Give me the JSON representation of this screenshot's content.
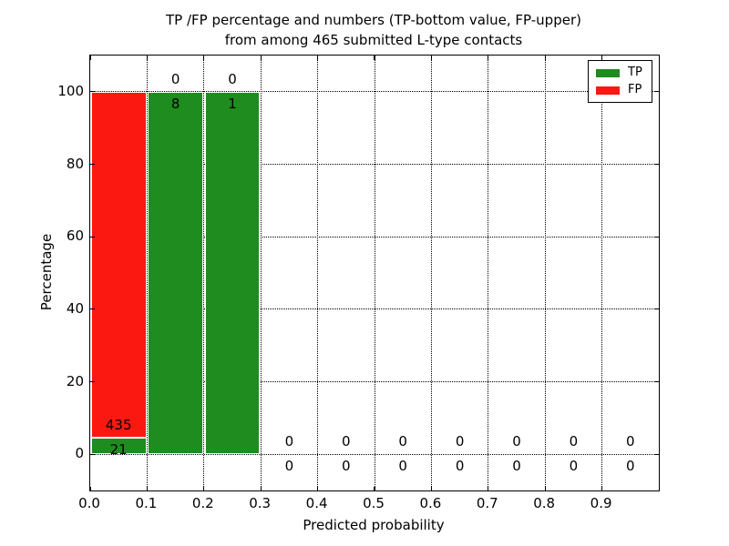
{
  "chart_data": {
    "type": "bar",
    "stacked": true,
    "title_line1": "TP /FP percentage and numbers (TP-bottom value, FP-upper)",
    "title_line2": "from among 465 submitted L-type contacts",
    "xlabel": "Predicted probability",
    "ylabel": "Percentage",
    "total_contacts": 465,
    "xlim": [
      0.0,
      1.0
    ],
    "ylim": [
      -10,
      110
    ],
    "x_tick_labels": [
      "0.0",
      "0.1",
      "0.2",
      "0.3",
      "0.4",
      "0.5",
      "0.6",
      "0.7",
      "0.8",
      "0.9"
    ],
    "y_ticks": [
      0,
      20,
      40,
      60,
      80,
      100
    ],
    "grid_style": "dotted",
    "legend": {
      "position": "upper right",
      "entries": [
        {
          "label": "TP",
          "color": "#1e8c1e"
        },
        {
          "label": "FP",
          "color": "#fb1811"
        }
      ]
    },
    "series": [
      {
        "name": "TP",
        "counts": [
          21,
          8,
          1,
          0,
          0,
          0,
          0,
          0,
          0,
          0
        ]
      },
      {
        "name": "FP",
        "counts": [
          435,
          0,
          0,
          0,
          0,
          0,
          0,
          0,
          0,
          0
        ]
      }
    ],
    "bins": [
      {
        "range": "0.0-0.1",
        "tp": 21,
        "fp": 435,
        "tp_pct": 4.6,
        "fp_pct": 95.4
      },
      {
        "range": "0.1-0.2",
        "tp": 8,
        "fp": 0,
        "tp_pct": 100,
        "fp_pct": 0
      },
      {
        "range": "0.2-0.3",
        "tp": 1,
        "fp": 0,
        "tp_pct": 100,
        "fp_pct": 0
      },
      {
        "range": "0.3-0.4",
        "tp": 0,
        "fp": 0,
        "tp_pct": 0,
        "fp_pct": 0
      },
      {
        "range": "0.4-0.5",
        "tp": 0,
        "fp": 0,
        "tp_pct": 0,
        "fp_pct": 0
      },
      {
        "range": "0.5-0.6",
        "tp": 0,
        "fp": 0,
        "tp_pct": 0,
        "fp_pct": 0
      },
      {
        "range": "0.6-0.7",
        "tp": 0,
        "fp": 0,
        "tp_pct": 0,
        "fp_pct": 0
      },
      {
        "range": "0.7-0.8",
        "tp": 0,
        "fp": 0,
        "tp_pct": 0,
        "fp_pct": 0
      },
      {
        "range": "0.8-0.9",
        "tp": 0,
        "fp": 0,
        "tp_pct": 0,
        "fp_pct": 0
      },
      {
        "range": "0.9-1.0",
        "tp": 0,
        "fp": 0,
        "tp_pct": 0,
        "fp_pct": 0
      }
    ]
  },
  "colors": {
    "tp_green": "#1e8c1e",
    "fp_red": "#fb1811",
    "grid": "#000000",
    "background": "#ffffff"
  }
}
